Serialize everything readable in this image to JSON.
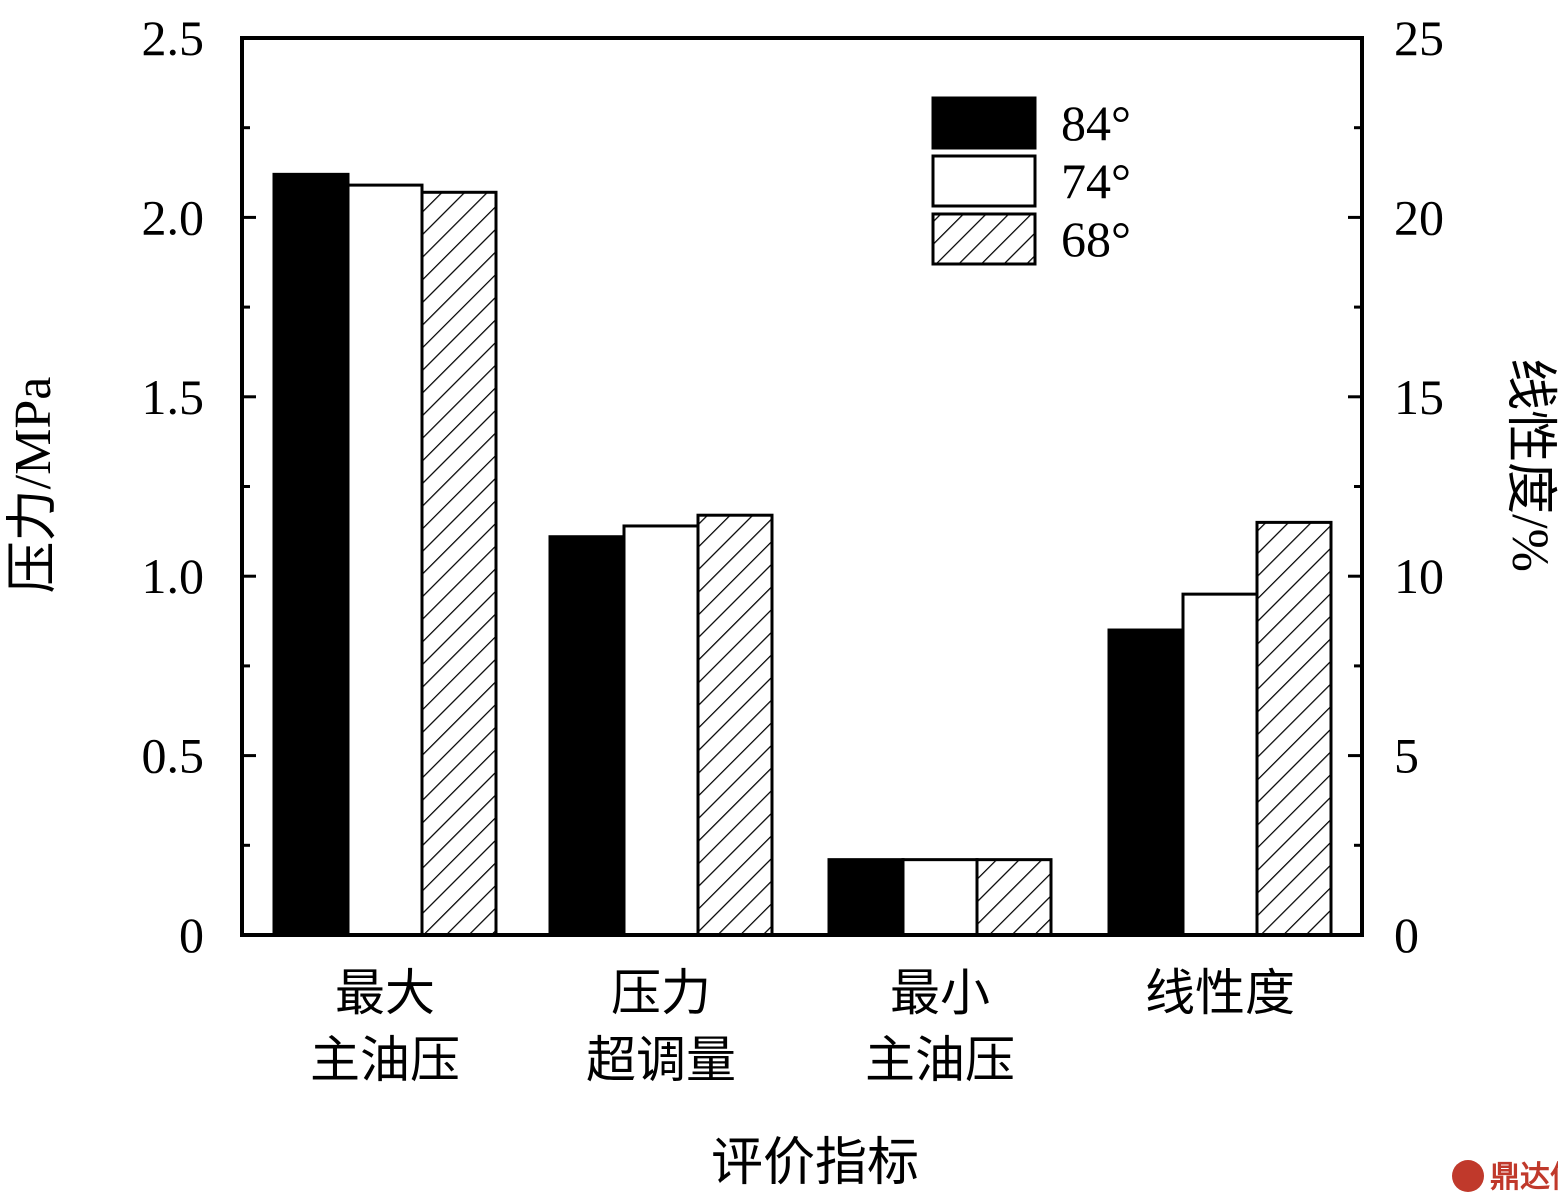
{
  "chart_data": {
    "type": "bar",
    "categories": [
      [
        "最大",
        "主油压"
      ],
      [
        "压力",
        "超调量"
      ],
      [
        "最小",
        "主油压"
      ],
      [
        "线性度"
      ]
    ],
    "series": [
      {
        "name": "84°",
        "values": [
          2.12,
          1.11,
          0.21,
          8.5
        ],
        "fill": "solid-black"
      },
      {
        "name": "74°",
        "values": [
          2.09,
          1.14,
          0.21,
          9.5
        ],
        "fill": "white"
      },
      {
        "name": "68°",
        "values": [
          2.07,
          1.17,
          0.21,
          11.5
        ],
        "fill": "hatched"
      }
    ],
    "series_axis": [
      "left",
      "left",
      "left",
      "right"
    ],
    "xlabel": "评价指标",
    "ylabel": "压力/MPa",
    "y2label": "线性度/%",
    "ylim": [
      0,
      2.5
    ],
    "y2lim": [
      0,
      25
    ],
    "yticks": [
      "0",
      "0.5",
      "1.0",
      "1.5",
      "2.0",
      "2.5"
    ],
    "y2ticks": [
      "0",
      "5",
      "10",
      "15",
      "20",
      "25"
    ],
    "grid": false,
    "legend_position": "top-right"
  },
  "watermark": {
    "text": "鼎达信"
  },
  "colors": {
    "bar_solid": "#000000",
    "bar_empty": "#ffffff",
    "stroke": "#000000",
    "watermark": "#c0392b"
  }
}
